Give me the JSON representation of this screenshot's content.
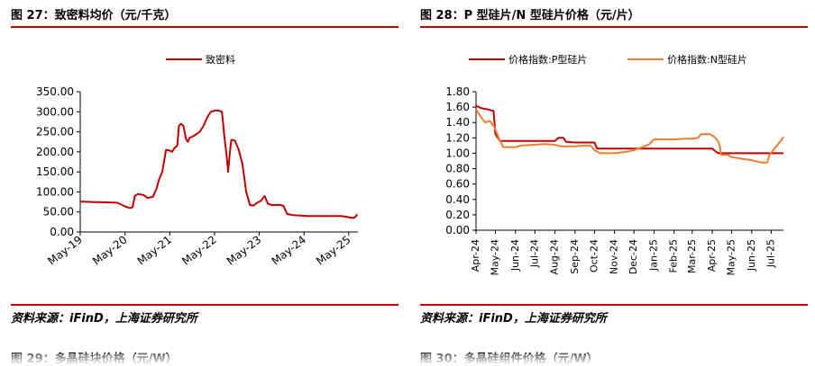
{
  "panels": [
    {
      "title": "图 27：致密料均价（元/千克）",
      "source": "资料来源：iFinD，上海证券研究所",
      "next_title": "图 29：多晶硅块价格（元/W）"
    },
    {
      "title": "图 28：P 型硅片/N 型硅片价格（元/片）",
      "source": "资料来源：iFinD，上海证券研究所",
      "next_title": "图 30：多晶硅组件价格（元/W）"
    }
  ],
  "chart_data": [
    {
      "type": "line",
      "title": "",
      "xlabel": "",
      "ylabel": "",
      "ylim": [
        0,
        350
      ],
      "yticks": [
        "0.00",
        "50.00",
        "100.00",
        "150.00",
        "200.00",
        "250.00",
        "300.00",
        "350.00"
      ],
      "xticks": [
        "May-19",
        "May-20",
        "May-21",
        "May-22",
        "May-23",
        "May-24",
        "May-25"
      ],
      "x_range": [
        "2019-05-01",
        "2025-07-15"
      ],
      "legend_position": "top-center",
      "series": [
        {
          "name": "致密料",
          "color": "#c00000",
          "points": [
            [
              "2019-05-01",
              76
            ],
            [
              "2019-08-01",
              75
            ],
            [
              "2019-12-01",
              74
            ],
            [
              "2020-03-01",
              73
            ],
            [
              "2020-05-15",
              62
            ],
            [
              "2020-06-15",
              60
            ],
            [
              "2020-07-01",
              62
            ],
            [
              "2020-07-20",
              90
            ],
            [
              "2020-08-15",
              95
            ],
            [
              "2020-10-01",
              92
            ],
            [
              "2020-11-01",
              85
            ],
            [
              "2020-12-15",
              88
            ],
            [
              "2021-01-15",
              110
            ],
            [
              "2021-02-01",
              130
            ],
            [
              "2021-03-01",
              150
            ],
            [
              "2021-04-01",
              205
            ],
            [
              "2021-05-01",
              203
            ],
            [
              "2021-05-20",
              200
            ],
            [
              "2021-06-10",
              210
            ],
            [
              "2021-07-01",
              215
            ],
            [
              "2021-07-15",
              265
            ],
            [
              "2021-08-01",
              270
            ],
            [
              "2021-08-20",
              265
            ],
            [
              "2021-09-10",
              233
            ],
            [
              "2021-09-25",
              225
            ],
            [
              "2021-10-10",
              235
            ],
            [
              "2021-11-15",
              240
            ],
            [
              "2022-01-01",
              250
            ],
            [
              "2022-02-01",
              265
            ],
            [
              "2022-03-01",
              285
            ],
            [
              "2022-04-01",
              300
            ],
            [
              "2022-05-01",
              303
            ],
            [
              "2022-06-01",
              303
            ],
            [
              "2022-07-01",
              300
            ],
            [
              "2022-07-20",
              240
            ],
            [
              "2022-08-10",
              185
            ],
            [
              "2022-08-20",
              150
            ],
            [
              "2022-09-01",
              190
            ],
            [
              "2022-09-15",
              230
            ],
            [
              "2022-10-15",
              228
            ],
            [
              "2022-11-15",
              205
            ],
            [
              "2022-12-15",
              170
            ],
            [
              "2023-01-15",
              100
            ],
            [
              "2023-02-15",
              67
            ],
            [
              "2023-03-15",
              66
            ],
            [
              "2023-04-15",
              73
            ],
            [
              "2023-05-15",
              78
            ],
            [
              "2023-06-15",
              90
            ],
            [
              "2023-07-10",
              71
            ],
            [
              "2023-08-15",
              67
            ],
            [
              "2023-10-15",
              68
            ],
            [
              "2023-11-15",
              65
            ],
            [
              "2023-12-15",
              45
            ],
            [
              "2024-02-01",
              42
            ],
            [
              "2024-06-01",
              40
            ],
            [
              "2024-10-01",
              40
            ],
            [
              "2025-01-15",
              40
            ],
            [
              "2025-03-01",
              40
            ],
            [
              "2025-04-15",
              38
            ],
            [
              "2025-05-15",
              36
            ],
            [
              "2025-06-10",
              35
            ],
            [
              "2025-06-25",
              38
            ],
            [
              "2025-07-10",
              44
            ]
          ]
        }
      ]
    },
    {
      "type": "line",
      "title": "",
      "xlabel": "",
      "ylabel": "",
      "ylim": [
        0,
        1.8
      ],
      "yticks": [
        "0.00",
        "0.20",
        "0.40",
        "0.60",
        "0.80",
        "1.00",
        "1.20",
        "1.40",
        "1.60",
        "1.80"
      ],
      "xticks": [
        "Apr-24",
        "May-24",
        "Jun-24",
        "Jul-24",
        "Aug-24",
        "Sep-24",
        "Oct-24",
        "Nov-24",
        "Dec-24",
        "Jan-25",
        "Feb-25",
        "Mar-25",
        "Apr-25",
        "May-25",
        "Jun-25",
        "Jul-25"
      ],
      "x_range": [
        "2024-04-01",
        "2025-07-20"
      ],
      "legend_position": "top",
      "series": [
        {
          "name": "价格指数:P型硅片",
          "color": "#c00000",
          "points": [
            [
              "2024-04-01",
              1.62
            ],
            [
              "2024-04-05",
              1.6
            ],
            [
              "2024-04-12",
              1.58
            ],
            [
              "2024-04-20",
              1.57
            ],
            [
              "2024-04-28",
              1.55
            ],
            [
              "2024-05-01",
              1.25
            ],
            [
              "2024-05-08",
              1.16
            ],
            [
              "2024-06-01",
              1.16
            ],
            [
              "2024-07-01",
              1.16
            ],
            [
              "2024-08-01",
              1.16
            ],
            [
              "2024-08-06",
              1.2
            ],
            [
              "2024-08-14",
              1.2
            ],
            [
              "2024-08-18",
              1.15
            ],
            [
              "2024-09-01",
              1.14
            ],
            [
              "2024-10-01",
              1.14
            ],
            [
              "2024-10-05",
              1.06
            ],
            [
              "2024-12-01",
              1.06
            ],
            [
              "2025-02-01",
              1.06
            ],
            [
              "2025-04-01",
              1.06
            ],
            [
              "2025-04-10",
              1.0
            ],
            [
              "2025-06-01",
              1.0
            ],
            [
              "2025-07-20",
              1.0
            ]
          ]
        },
        {
          "name": "价格指数:N型硅片",
          "color": "#ed7d31",
          "points": [
            [
              "2024-04-01",
              1.57
            ],
            [
              "2024-04-08",
              1.48
            ],
            [
              "2024-04-15",
              1.4
            ],
            [
              "2024-04-22",
              1.42
            ],
            [
              "2024-04-29",
              1.35
            ],
            [
              "2024-05-06",
              1.2
            ],
            [
              "2024-05-13",
              1.08
            ],
            [
              "2024-06-01",
              1.08
            ],
            [
              "2024-06-10",
              1.1
            ],
            [
              "2024-07-01",
              1.11
            ],
            [
              "2024-07-15",
              1.12
            ],
            [
              "2024-08-01",
              1.11
            ],
            [
              "2024-08-10",
              1.09
            ],
            [
              "2024-09-01",
              1.09
            ],
            [
              "2024-09-15",
              1.1
            ],
            [
              "2024-09-25",
              1.1
            ],
            [
              "2024-10-01",
              1.04
            ],
            [
              "2024-10-10",
              1.0
            ],
            [
              "2024-11-01",
              1.0
            ],
            [
              "2024-11-20",
              1.02
            ],
            [
              "2024-12-01",
              1.04
            ],
            [
              "2024-12-15",
              1.08
            ],
            [
              "2024-12-25",
              1.12
            ],
            [
              "2025-01-01",
              1.18
            ],
            [
              "2025-02-01",
              1.18
            ],
            [
              "2025-02-20",
              1.19
            ],
            [
              "2025-03-01",
              1.19
            ],
            [
              "2025-03-10",
              1.2
            ],
            [
              "2025-03-15",
              1.25
            ],
            [
              "2025-03-28",
              1.25
            ],
            [
              "2025-04-03",
              1.22
            ],
            [
              "2025-04-08",
              1.18
            ],
            [
              "2025-04-12",
              1.12
            ],
            [
              "2025-04-15",
              0.98
            ],
            [
              "2025-04-25",
              0.98
            ],
            [
              "2025-05-01",
              0.95
            ],
            [
              "2025-05-15",
              0.93
            ],
            [
              "2025-06-01",
              0.91
            ],
            [
              "2025-06-15",
              0.88
            ],
            [
              "2025-06-25",
              0.88
            ],
            [
              "2025-06-28",
              0.97
            ],
            [
              "2025-07-05",
              1.05
            ],
            [
              "2025-07-12",
              1.12
            ],
            [
              "2025-07-20",
              1.21
            ]
          ]
        }
      ]
    }
  ]
}
